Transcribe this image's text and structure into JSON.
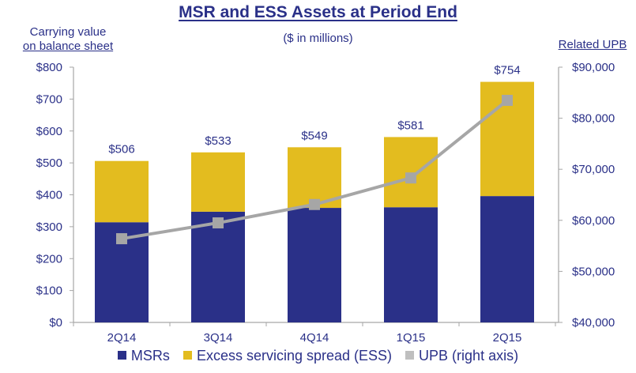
{
  "chart_data": {
    "type": "bar",
    "title": "MSR and ESS Assets at Period End",
    "subtitle": "($ in millions)",
    "ylabel_left": [
      "Carrying value",
      "on balance sheet"
    ],
    "ylabel_right": "Related UPB",
    "categories": [
      "2Q14",
      "3Q14",
      "4Q14",
      "1Q15",
      "2Q15"
    ],
    "series": [
      {
        "name": "MSRs",
        "type": "bar",
        "stacked": true,
        "axis": "left",
        "color": "#2a3088",
        "values": [
          314,
          347,
          359,
          361,
          396
        ]
      },
      {
        "name": "Excess servicing spread (ESS)",
        "type": "bar",
        "stacked": true,
        "axis": "left",
        "color": "#e3bc1f",
        "values": [
          192,
          186,
          190,
          220,
          358
        ]
      },
      {
        "name": "UPB (right axis)",
        "type": "line",
        "axis": "right",
        "color": "#a6a6a6",
        "values": [
          56400,
          59500,
          63100,
          68300,
          83500
        ]
      }
    ],
    "totals": [
      506,
      533,
      549,
      581,
      754
    ],
    "total_labels": [
      "$506",
      "$533",
      "$549",
      "$581",
      "$754"
    ],
    "ylim_left": [
      0,
      800
    ],
    "ylim_right": [
      40000,
      90000
    ],
    "yticks_left": [
      "$0",
      "$100",
      "$200",
      "$300",
      "$400",
      "$500",
      "$600",
      "$700",
      "$800"
    ],
    "yticks_right": [
      "$40,000",
      "$50,000",
      "$60,000",
      "$70,000",
      "$80,000",
      "$90,000"
    ],
    "grid": false,
    "legend_position": "bottom"
  },
  "legend": [
    {
      "label": "MSRs",
      "color": "#2a3088"
    },
    {
      "label": "Excess servicing spread (ESS)",
      "color": "#e3bc1f"
    },
    {
      "label": "UPB (right axis)",
      "color": "#bfbfbf"
    }
  ]
}
